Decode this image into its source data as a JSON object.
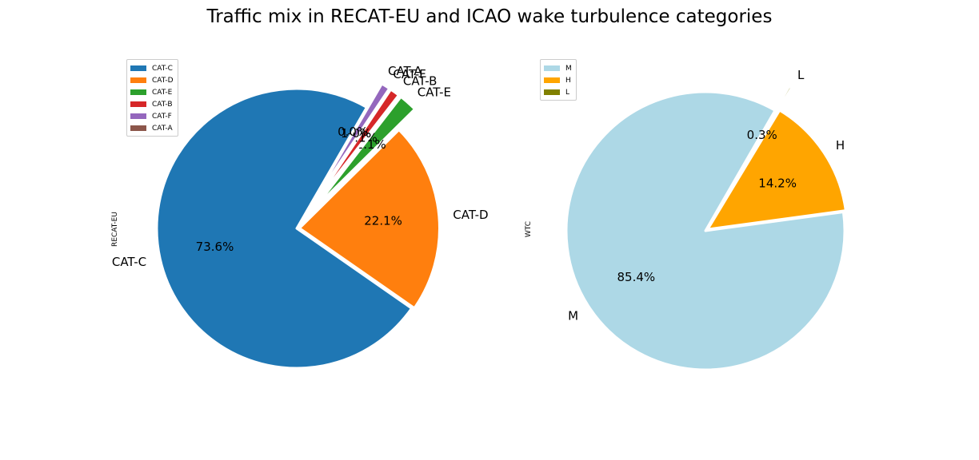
{
  "title": "Traffic mix in RECAT-EU and ICAO wake turbulence categories",
  "chart_data": [
    {
      "type": "pie",
      "ylabel": "RECAT-EU",
      "start_angle_deg": 60,
      "legend_position": "upper-left",
      "slices": [
        {
          "label": "CAT-C",
          "value": 73.6,
          "pct_label": "73.6%",
          "color": "#1f77b4",
          "explode": 0.0
        },
        {
          "label": "CAT-D",
          "value": 22.1,
          "pct_label": "22.1%",
          "color": "#ff7f0e",
          "explode": 0.02
        },
        {
          "label": "CAT-E",
          "value": 2.1,
          "pct_label": "2.1%",
          "color": "#2ca02c",
          "explode": 0.2
        },
        {
          "label": "CAT-B",
          "value": 1.1,
          "pct_label": "1.1%",
          "color": "#d62728",
          "explode": 0.2
        },
        {
          "label": "CAT-F",
          "value": 1.0,
          "pct_label": "1.0%",
          "color": "#9467bd",
          "explode": 0.2
        },
        {
          "label": "CAT-A",
          "value": 0.04,
          "pct_label": "0.0%",
          "color": "#8c564b",
          "explode": 0.2
        }
      ]
    },
    {
      "type": "pie",
      "ylabel": "WTC",
      "start_angle_deg": 60,
      "legend_position": "upper-left",
      "slices": [
        {
          "label": "M",
          "value": 85.4,
          "pct_label": "85.4%",
          "color": "#add8e6",
          "explode": 0.0
        },
        {
          "label": "H",
          "value": 14.2,
          "pct_label": "14.2%",
          "color": "#ffa500",
          "explode": 0.02
        },
        {
          "label": "L",
          "value": 0.3,
          "pct_label": "0.3%",
          "color": "#808000",
          "explode": 0.2
        }
      ]
    }
  ]
}
